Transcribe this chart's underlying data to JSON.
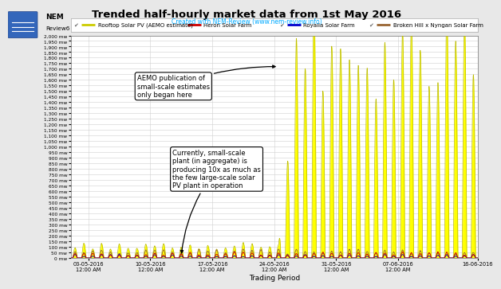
{
  "title": "Trended half-hourly market data from 1st May 2016",
  "subtitle": "Created with NEM-Review (www.nem-review.info)",
  "subtitle_color": "#00AAFF",
  "xlabel": "Trading Period",
  "background_color": "#E8E8E8",
  "plot_bg_color": "#FFFFFF",
  "grid_color": "#D0D0D0",
  "legend_entries": [
    {
      "label": "Rooftop Solar PV (AEMO estimate)",
      "color": "#CCCC00",
      "fill": "#FFFF00"
    },
    {
      "label": "Heron Solar Farm",
      "color": "#CC0000"
    },
    {
      "label": "Royalla Solar Farm",
      "color": "#0000CC"
    },
    {
      "label": "Broken Hill x Nyngan Solar Farm",
      "color": "#996633"
    }
  ],
  "annotation1_text": "AEMO publication of\nsmall-scale estimates\nonly began here",
  "annotation2_text": "Currently, small-scale\nplant (in aggregate) is\nproducing 10x as much as\nthe few large-scale solar\nPV plant in operation",
  "ylim": [
    0,
    2000
  ],
  "ytick_step": 50,
  "n_days": 46,
  "aemo_start_day": 23.5,
  "x_tick_pos": [
    2,
    9,
    16,
    23,
    30,
    37,
    46
  ],
  "x_tick_labels": [
    "03-05-2016\n12:00 AM",
    "10-05-2016\n12:00 AM",
    "17-05-2016\n12:00 AM",
    "24-05-2016\n12:00 AM",
    "31-05-2016\n12:00 AM",
    "07-06-2016\n12:00 AM",
    "16-06-2016"
  ],
  "rooftop_peak_before": 110,
  "rooftop_peak_after_max": 1900,
  "heron_peak": 48,
  "royalla_peak": 28,
  "broken_hill_peak": 70
}
